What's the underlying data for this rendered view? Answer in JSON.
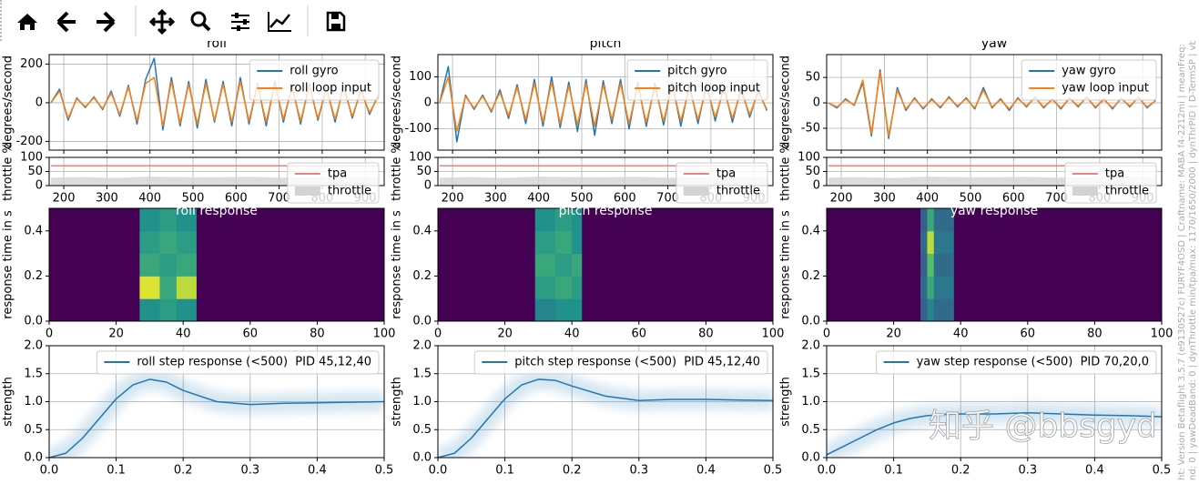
{
  "side_text": [
    "ht: Version Betaflight 3.5.7 (e9130527c) FURYF4OSD | Craftname: MABA f4-2212mi | meanFreq: 4",
    "nd: 0 | yawDeadBand: 0 | dynThrottle min/tpa/max: 1170/1650/2000 | dynThrPID | D-TermSP | vbatC"
  ],
  "watermark": "知乎 @bbsgyd",
  "chart_data": [
    {
      "type": "line",
      "title": "roll",
      "ylabel": "degrees/second",
      "grid": true,
      "legend": "upper right",
      "show_xtick_labels": false,
      "x": [
        170,
        190,
        210,
        230,
        250,
        270,
        290,
        310,
        330,
        350,
        370,
        390,
        410,
        430,
        450,
        470,
        490,
        510,
        530,
        550,
        570,
        590,
        610,
        630,
        650,
        670,
        690,
        710,
        730,
        750,
        770,
        790,
        810,
        830,
        850,
        870,
        890,
        910,
        930
      ],
      "xlim": [
        166,
        944
      ],
      "xticks": [
        200,
        300,
        400,
        500,
        600,
        700,
        800,
        900
      ],
      "ylim": [
        -245,
        249
      ],
      "yticks": [
        -200,
        0,
        200
      ],
      "series": [
        {
          "name": "roll gyro",
          "color": "#1f77b4",
          "values": [
            0,
            70,
            -90,
            25,
            -25,
            30,
            -35,
            60,
            -70,
            90,
            -110,
            120,
            230,
            -140,
            130,
            -120,
            110,
            -130,
            120,
            -100,
            110,
            -120,
            130,
            -110,
            100,
            -120,
            110,
            -100,
            90,
            -110,
            100,
            -90,
            80,
            -100,
            90,
            -80,
            70,
            -60,
            40
          ]
        },
        {
          "name": "roll loop input",
          "color": "#ff7f0e",
          "values": [
            0,
            60,
            -80,
            20,
            -20,
            25,
            -30,
            50,
            -60,
            80,
            -95,
            100,
            130,
            -120,
            110,
            -105,
            95,
            -110,
            100,
            -90,
            95,
            -100,
            110,
            -95,
            90,
            -100,
            95,
            -85,
            80,
            -95,
            85,
            -80,
            70,
            -85,
            75,
            -70,
            60,
            -50,
            30
          ]
        }
      ]
    },
    {
      "type": "line",
      "ylabel": "throttle %",
      "grid": true,
      "legend": "upper right",
      "x": [
        170,
        246,
        322,
        398,
        474,
        550,
        626,
        702,
        778,
        854,
        930
      ],
      "xlim": [
        166,
        944
      ],
      "xticks": [
        200,
        300,
        400,
        500,
        600,
        700,
        800,
        900
      ],
      "ylim": [
        0,
        100
      ],
      "yticks": [
        0,
        50,
        100
      ],
      "series": [
        {
          "name": "tpa",
          "color": "#f08080",
          "values": [
            70,
            70,
            70,
            70,
            70,
            70,
            70,
            70,
            70,
            70,
            70
          ]
        },
        {
          "name": "throttle",
          "color": "#d3d3d3",
          "fill": true,
          "values": [
            28,
            30,
            27,
            32,
            30,
            29,
            31,
            28,
            30,
            33,
            29
          ]
        }
      ]
    },
    {
      "type": "heatmap",
      "title": "roll response",
      "ylabel": "response time in s",
      "colormap": "viridis",
      "xlim": [
        0,
        100
      ],
      "xticks": [
        0,
        20,
        40,
        60,
        80,
        100
      ],
      "ylim": [
        0,
        0.5
      ],
      "yticks": [
        {
          "value": 0,
          "label": "0.0"
        },
        0.2,
        0.4
      ],
      "x_edges": [
        0,
        27,
        33,
        38,
        44,
        100
      ],
      "y_edges": [
        0,
        0.1,
        0.2,
        0.3,
        0.4,
        0.5
      ],
      "values": [
        [
          0,
          0.5,
          0.55,
          0.5,
          0
        ],
        [
          0,
          0.95,
          0.6,
          0.9,
          0
        ],
        [
          0,
          0.6,
          0.55,
          0.6,
          0
        ],
        [
          0,
          0.55,
          0.6,
          0.55,
          0
        ],
        [
          0,
          0.5,
          0.55,
          0.5,
          0
        ]
      ]
    },
    {
      "type": "line",
      "ylabel": "strength",
      "grid": true,
      "legend": "upper right",
      "cloud": true,
      "x": [
        0,
        0.025,
        0.05,
        0.075,
        0.1,
        0.125,
        0.15,
        0.175,
        0.2,
        0.25,
        0.3,
        0.35,
        0.4,
        0.45,
        0.5
      ],
      "xlim": [
        0,
        0.5
      ],
      "xticks": [
        {
          "value": 0,
          "label": "0.0"
        },
        0.1,
        0.2,
        0.3,
        0.4,
        0.5
      ],
      "ylim": [
        0,
        2
      ],
      "yticks": [
        {
          "value": 0,
          "label": "0.0"
        },
        0.5,
        {
          "value": 1,
          "label": "1.0"
        },
        1.5,
        {
          "value": 2,
          "label": "2.0"
        }
      ],
      "series": [
        {
          "name": "roll step response (<500)  PID 45,12,40",
          "color": "#1f77b4",
          "values": [
            0,
            0.08,
            0.35,
            0.7,
            1.05,
            1.3,
            1.4,
            1.35,
            1.2,
            1.0,
            0.95,
            0.97,
            0.98,
            0.99,
            1.0
          ]
        }
      ]
    },
    {
      "type": "line",
      "title": "pitch",
      "ylabel": "degrees/second",
      "grid": true,
      "legend": "upper right",
      "show_xtick_labels": false,
      "x": [
        170,
        190,
        210,
        230,
        250,
        270,
        290,
        310,
        330,
        350,
        370,
        390,
        410,
        430,
        450,
        470,
        490,
        510,
        530,
        550,
        570,
        590,
        610,
        630,
        650,
        670,
        690,
        710,
        730,
        750,
        770,
        790,
        810,
        830,
        850,
        870,
        890,
        910,
        930
      ],
      "xlim": [
        166,
        944
      ],
      "xticks": [
        200,
        300,
        400,
        500,
        600,
        700,
        800,
        900
      ],
      "ylim": [
        -182,
        186
      ],
      "yticks": [
        -100,
        0,
        100
      ],
      "series": [
        {
          "name": "pitch gyro",
          "color": "#1f77b4",
          "values": [
            0,
            140,
            -150,
            30,
            -25,
            30,
            -35,
            50,
            -60,
            70,
            -80,
            90,
            -90,
            100,
            -95,
            80,
            -110,
            90,
            -125,
            85,
            -80,
            90,
            -100,
            80,
            -90,
            75,
            -85,
            80,
            -90,
            70,
            -80,
            75,
            -70,
            65,
            -75,
            60,
            -55,
            50,
            -30
          ]
        },
        {
          "name": "pitch loop input",
          "color": "#ff7f0e",
          "values": [
            0,
            100,
            -110,
            25,
            -20,
            25,
            -30,
            40,
            -50,
            60,
            -65,
            75,
            -75,
            80,
            -80,
            65,
            -85,
            75,
            -90,
            70,
            -65,
            75,
            -80,
            65,
            -75,
            60,
            -70,
            65,
            -70,
            55,
            -65,
            60,
            -55,
            50,
            -60,
            45,
            -45,
            40,
            -25
          ]
        }
      ]
    },
    {
      "type": "line",
      "ylabel": "throttle %",
      "grid": true,
      "legend": "upper right",
      "x": [
        170,
        246,
        322,
        398,
        474,
        550,
        626,
        702,
        778,
        854,
        930
      ],
      "xlim": [
        166,
        944
      ],
      "xticks": [
        200,
        300,
        400,
        500,
        600,
        700,
        800,
        900
      ],
      "ylim": [
        0,
        100
      ],
      "yticks": [
        0,
        50,
        100
      ],
      "series": [
        {
          "name": "tpa",
          "color": "#f08080",
          "values": [
            70,
            70,
            70,
            70,
            70,
            70,
            70,
            70,
            70,
            70,
            70
          ]
        },
        {
          "name": "throttle",
          "color": "#d3d3d3",
          "fill": true,
          "values": [
            28,
            30,
            27,
            32,
            30,
            29,
            31,
            28,
            30,
            33,
            29
          ]
        }
      ]
    },
    {
      "type": "heatmap",
      "title": "pitch response",
      "ylabel": "response time in s",
      "colormap": "viridis",
      "xlim": [
        0,
        100
      ],
      "xticks": [
        0,
        20,
        40,
        60,
        80,
        100
      ],
      "ylim": [
        0,
        0.5
      ],
      "yticks": [
        {
          "value": 0,
          "label": "0.0"
        },
        0.2,
        0.4
      ],
      "x_edges": [
        0,
        29,
        35,
        40,
        43,
        100
      ],
      "y_edges": [
        0,
        0.1,
        0.2,
        0.3,
        0.4,
        0.5
      ],
      "values": [
        [
          0,
          0.45,
          0.5,
          0.5,
          0
        ],
        [
          0,
          0.55,
          0.6,
          0.55,
          0
        ],
        [
          0,
          0.6,
          0.55,
          0.6,
          0
        ],
        [
          0,
          0.55,
          0.6,
          0.5,
          0
        ],
        [
          0,
          0.5,
          0.55,
          0.5,
          0
        ]
      ]
    },
    {
      "type": "line",
      "ylabel": "strength",
      "grid": true,
      "legend": "upper right",
      "cloud": true,
      "x": [
        0,
        0.025,
        0.05,
        0.075,
        0.1,
        0.125,
        0.15,
        0.175,
        0.2,
        0.25,
        0.3,
        0.35,
        0.4,
        0.45,
        0.5
      ],
      "xlim": [
        0,
        0.5
      ],
      "xticks": [
        {
          "value": 0,
          "label": "0.0"
        },
        0.1,
        0.2,
        0.3,
        0.4,
        0.5
      ],
      "ylim": [
        0,
        2
      ],
      "yticks": [
        {
          "value": 0,
          "label": "0.0"
        },
        0.5,
        {
          "value": 1,
          "label": "1.0"
        },
        1.5,
        {
          "value": 2,
          "label": "2.0"
        }
      ],
      "series": [
        {
          "name": "pitch step response (<500)  PID 45,12,40",
          "color": "#1f77b4",
          "values": [
            0,
            0.08,
            0.35,
            0.7,
            1.05,
            1.3,
            1.4,
            1.38,
            1.28,
            1.1,
            1.02,
            1.04,
            1.04,
            1.03,
            1.02
          ]
        }
      ]
    },
    {
      "type": "line",
      "title": "yaw",
      "ylabel": "degrees/second",
      "grid": true,
      "legend": "upper right",
      "show_xtick_labels": false,
      "x": [
        170,
        190,
        210,
        230,
        250,
        270,
        290,
        310,
        330,
        350,
        370,
        390,
        410,
        430,
        450,
        470,
        490,
        510,
        530,
        550,
        570,
        590,
        610,
        630,
        650,
        670,
        690,
        710,
        730,
        750,
        770,
        790,
        810,
        830,
        850,
        870,
        890,
        910,
        930
      ],
      "xlim": [
        166,
        944
      ],
      "xticks": [
        200,
        300,
        400,
        500,
        600,
        700,
        800,
        900
      ],
      "ylim": [
        -93,
        95
      ],
      "yticks": [
        -50,
        0,
        50
      ],
      "series": [
        {
          "name": "yaw gyro",
          "color": "#1f77b4",
          "values": [
            0,
            -10,
            8,
            -5,
            40,
            -65,
            65,
            -70,
            30,
            -15,
            10,
            -12,
            8,
            -10,
            12,
            -8,
            10,
            -12,
            30,
            -10,
            8,
            -15,
            10,
            -8,
            12,
            -10,
            8,
            -12,
            10,
            -8,
            12,
            -10,
            8,
            -12,
            10,
            -8,
            12,
            -10,
            5
          ]
        },
        {
          "name": "yaw loop input",
          "color": "#ff7f0e",
          "values": [
            0,
            -8,
            6,
            -4,
            45,
            -60,
            60,
            -65,
            25,
            -12,
            8,
            -10,
            6,
            -8,
            10,
            -6,
            8,
            -10,
            25,
            -8,
            6,
            -12,
            8,
            -6,
            10,
            -8,
            6,
            -10,
            8,
            -6,
            10,
            -8,
            6,
            -10,
            8,
            -6,
            10,
            -8,
            4
          ]
        }
      ]
    },
    {
      "type": "line",
      "ylabel": "throttle %",
      "grid": true,
      "legend": "upper right",
      "x": [
        170,
        246,
        322,
        398,
        474,
        550,
        626,
        702,
        778,
        854,
        930
      ],
      "xlim": [
        166,
        944
      ],
      "xticks": [
        200,
        300,
        400,
        500,
        600,
        700,
        800,
        900
      ],
      "ylim": [
        0,
        100
      ],
      "yticks": [
        0,
        50,
        100
      ],
      "series": [
        {
          "name": "tpa",
          "color": "#f08080",
          "values": [
            70,
            70,
            70,
            70,
            70,
            70,
            70,
            70,
            70,
            70,
            70
          ]
        },
        {
          "name": "throttle",
          "color": "#d3d3d3",
          "fill": true,
          "values": [
            28,
            30,
            27,
            32,
            30,
            29,
            31,
            28,
            30,
            33,
            29
          ]
        }
      ]
    },
    {
      "type": "heatmap",
      "title": "yaw response",
      "ylabel": "response time in s",
      "colormap": "viridis",
      "xlim": [
        0,
        100
      ],
      "xticks": [
        0,
        20,
        40,
        60,
        80,
        100
      ],
      "ylim": [
        0,
        0.5
      ],
      "yticks": [
        {
          "value": 0,
          "label": "0.0"
        },
        0.2,
        0.4
      ],
      "x_edges": [
        0,
        28,
        30,
        32,
        38,
        100
      ],
      "y_edges": [
        0,
        0.1,
        0.2,
        0.3,
        0.4,
        0.5
      ],
      "values": [
        [
          0,
          0.3,
          0.45,
          0.35,
          0
        ],
        [
          0,
          0.35,
          0.6,
          0.4,
          0
        ],
        [
          0,
          0.3,
          0.7,
          0.35,
          0
        ],
        [
          0,
          0.35,
          0.9,
          0.4,
          0
        ],
        [
          0,
          0.3,
          0.6,
          0.35,
          0
        ]
      ]
    },
    {
      "type": "line",
      "ylabel": "strength",
      "grid": true,
      "legend": "upper right",
      "cloud": true,
      "x": [
        0,
        0.025,
        0.05,
        0.075,
        0.1,
        0.125,
        0.15,
        0.175,
        0.2,
        0.25,
        0.3,
        0.35,
        0.4,
        0.45,
        0.5
      ],
      "xlim": [
        0,
        0.5
      ],
      "xticks": [
        {
          "value": 0,
          "label": "0.0"
        },
        0.1,
        0.2,
        0.3,
        0.4,
        0.5
      ],
      "ylim": [
        0,
        2
      ],
      "yticks": [
        {
          "value": 0,
          "label": "0.0"
        },
        0.5,
        {
          "value": 1,
          "label": "1.0"
        },
        1.5,
        {
          "value": 2,
          "label": "2.0"
        }
      ],
      "series": [
        {
          "name": "yaw step response (<500)  PID 70,20,0",
          "color": "#1f77b4",
          "values": [
            0.05,
            0.2,
            0.35,
            0.5,
            0.62,
            0.7,
            0.75,
            0.77,
            0.78,
            0.78,
            0.8,
            0.78,
            0.76,
            0.75,
            0.73
          ]
        }
      ]
    }
  ]
}
